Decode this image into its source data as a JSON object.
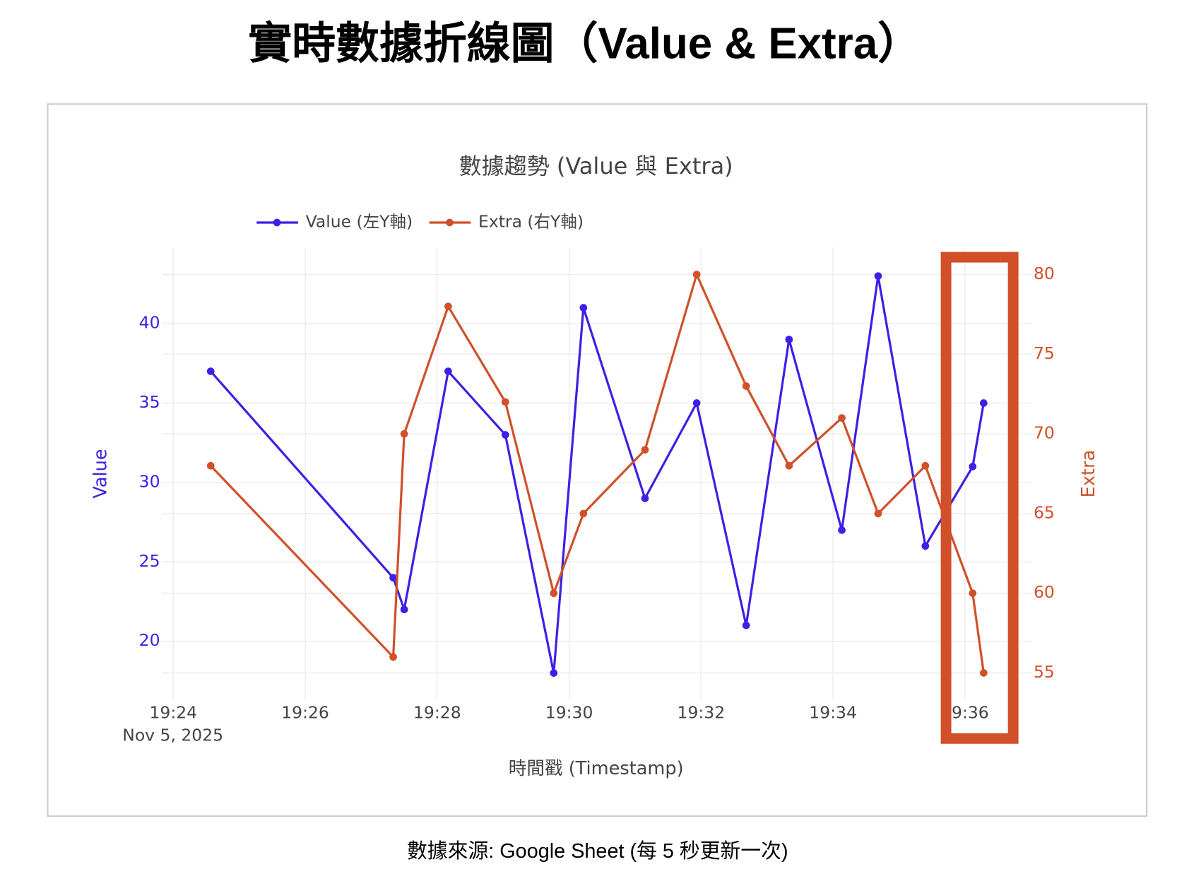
{
  "header": {
    "title": "實時數據折線圖（Value & Extra）"
  },
  "chart_data": {
    "type": "line",
    "title": "數據趨勢 (Value 與 Extra)",
    "x_title": "時間戳 (Timestamp)",
    "y_title": "Value",
    "y2_title": "Extra",
    "x_date": "Nov 5, 2025",
    "x": [
      "2025-11-05T19:24:34",
      "2025-11-05T19:27:20",
      "2025-11-05T19:27:30",
      "2025-11-05T19:28:10",
      "2025-11-05T19:29:02",
      "2025-11-05T19:29:46",
      "2025-11-05T19:30:13",
      "2025-11-05T19:31:09",
      "2025-11-05T19:31:56",
      "2025-11-05T19:32:41",
      "2025-11-05T19:33:20",
      "2025-11-05T19:34:08",
      "2025-11-05T19:34:41",
      "2025-11-05T19:35:24",
      "2025-11-05T19:36:07",
      "2025-11-05T19:36:17"
    ],
    "series": [
      {
        "name": "Value (左Y軸)",
        "color": "#3f1fe6",
        "values": [
          37,
          24,
          22,
          37,
          33,
          18,
          41,
          29,
          35,
          21,
          39,
          27,
          43,
          26,
          31,
          35
        ]
      },
      {
        "name": "Extra (右Y軸)",
        "color": "#d1502a",
        "axis": "y2",
        "values": [
          68,
          56,
          70,
          78,
          72,
          60,
          65,
          69,
          80,
          73,
          68,
          71,
          65,
          68,
          60,
          55
        ]
      }
    ],
    "xlim": [
      "2025-11-05T19:23:50",
      "2025-11-05T19:37:01"
    ],
    "xticks": [
      {
        "value": "2025-11-05T19:24:00",
        "label": "19:24"
      },
      {
        "value": "2025-11-05T19:26:00",
        "label": "19:26"
      },
      {
        "value": "2025-11-05T19:28:00",
        "label": "19:28"
      },
      {
        "value": "2025-11-05T19:30:00",
        "label": "19:30"
      },
      {
        "value": "2025-11-05T19:32:00",
        "label": "19:32"
      },
      {
        "value": "2025-11-05T19:34:00",
        "label": "19:34"
      },
      {
        "value": "2025-11-05T19:36:00",
        "label": "19:36"
      }
    ],
    "ylim": [
      16.3,
      44.8
    ],
    "yticks": [
      20,
      25,
      30,
      35,
      40
    ],
    "y2lim": [
      53.3,
      81.7
    ],
    "y2ticks": [
      55,
      60,
      65,
      70,
      75,
      80
    ],
    "grid": true
  },
  "footer": {
    "source": "數據來源: Google Sheet (每 5 秒更新一次)"
  }
}
